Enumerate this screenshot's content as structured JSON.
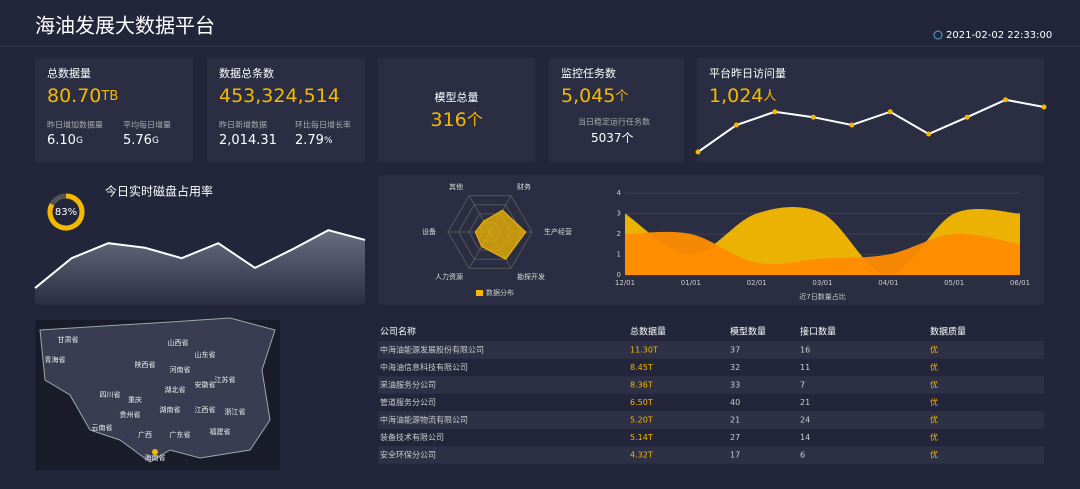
{
  "header": {
    "title": "海油发展大数据平台",
    "datetime": "2021-02-02 22:33:00"
  },
  "cards": [
    {
      "label": "总数据量",
      "value": "80.70",
      "unit": "TB",
      "subs": [
        {
          "label": "昨日增加数据量",
          "value": "6.10",
          "unit": "G"
        },
        {
          "label": "平均每日增量",
          "value": "5.76",
          "unit": "G"
        }
      ]
    },
    {
      "label": "数据总条数",
      "value": "453,324,514",
      "subs": [
        {
          "label": "昨日新增数据",
          "value": "2,014.31"
        },
        {
          "label": "环比每日增长率",
          "value": "2.79",
          "unit": "%"
        }
      ]
    },
    {
      "label": "模型总量",
      "value": "316",
      "unit": "个"
    },
    {
      "label": "监控任务数",
      "value": "5,045",
      "unit": "个",
      "subs": [
        {
          "label": "当日稳定运行任务数",
          "value": "5037",
          "unit": "个"
        }
      ]
    },
    {
      "label": "平台昨日访问量",
      "value": "1,024",
      "unit": "人"
    }
  ],
  "visits_chart": {
    "type": "line",
    "values": [
      5,
      50,
      72,
      63,
      50,
      72,
      35,
      63,
      92,
      80
    ],
    "color": "#ffffff",
    "marker_color": "#f5b800"
  },
  "disk": {
    "title": "今日实时磁盘占用率",
    "percent": {
      "value": 83,
      "value_label": "83%"
    },
    "trend": {
      "type": "area",
      "values": [
        3,
        49,
        72,
        65,
        49,
        72,
        34,
        62,
        92,
        77
      ],
      "color": "#ffffff"
    }
  },
  "radar": {
    "type": "radar",
    "axes": [
      "财务",
      "生产经营",
      "勘探开发",
      "人力资源",
      "设备",
      "其他"
    ],
    "values": [
      60,
      85,
      75,
      40,
      35,
      30
    ],
    "legend": "数据分布",
    "color": "#f5b800"
  },
  "area_chart": {
    "type": "area",
    "categories": [
      "12/01",
      "01/01",
      "02/01",
      "03/01",
      "04/01",
      "05/01",
      "06/01"
    ],
    "xlabel": "近7日数量占比",
    "ylim": [
      0,
      4
    ],
    "yticks": [
      0,
      1,
      2,
      3,
      4
    ],
    "series": [
      {
        "color": "#f5b800",
        "values": [
          3,
          1,
          3,
          3,
          0,
          3,
          3
        ]
      },
      {
        "color": "#ff8c00",
        "values": [
          2,
          2,
          0.6,
          0.8,
          1,
          2,
          1.5
        ]
      }
    ]
  },
  "map": {
    "regions": [
      "青海省",
      "甘肃省",
      "四川省",
      "云南省",
      "贵州省",
      "广西",
      "广东省",
      "海南省",
      "湖南省",
      "湖北省",
      "河南省",
      "山东省",
      "江苏省",
      "浙江省",
      "福建省",
      "江西省",
      "安徽省",
      "陕西省",
      "山西省",
      "重庆"
    ]
  },
  "table": {
    "headers": [
      "公司名称",
      "总数据量",
      "模型数量",
      "接口数量",
      "数据质量"
    ],
    "rows": [
      [
        "中海油能源发展股份有限公司",
        "11.30T",
        "37",
        "16",
        "优"
      ],
      [
        "中海油信息科技有限公司",
        "8.45T",
        "32",
        "11",
        "优"
      ],
      [
        "采油服务分公司",
        "8.36T",
        "33",
        "7",
        "优"
      ],
      [
        "管道服务分公司",
        "6.50T",
        "40",
        "21",
        "优"
      ],
      [
        "中海油能源物流有限公司",
        "5.20T",
        "21",
        "24",
        "优"
      ],
      [
        "装备技术有限公司",
        "5.14T",
        "27",
        "14",
        "优"
      ],
      [
        "安全环保分公司",
        "4.32T",
        "17",
        "6",
        "优"
      ]
    ]
  }
}
